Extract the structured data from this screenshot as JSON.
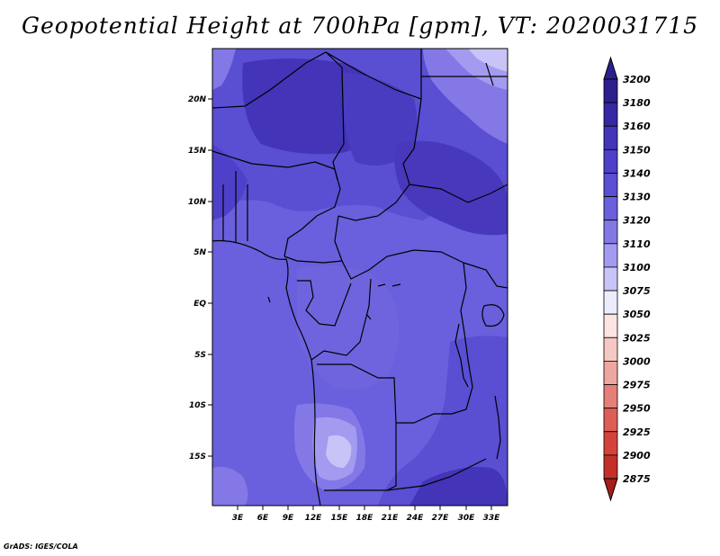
{
  "title": "Geopotential Height at 700hPa [gpm], VT: 2020031715",
  "footer": "GrADS: IGES/COLA",
  "map": {
    "lat_labels": [
      "20N",
      "15N",
      "10N",
      "5N",
      "EQ",
      "5S",
      "10S",
      "15S"
    ],
    "lon_labels": [
      "3E",
      "6E",
      "9E",
      "12E",
      "15E",
      "18E",
      "21E",
      "24E",
      "27E",
      "30E",
      "33E"
    ]
  },
  "colorbar": {
    "levels": [
      {
        "label": "3200",
        "color": "#2e1f8e"
      },
      {
        "label": "3180",
        "color": "#3627a4"
      },
      {
        "label": "3160",
        "color": "#4334b8"
      },
      {
        "label": "3150",
        "color": "#4e40c8"
      },
      {
        "label": "3140",
        "color": "#5a4ed2"
      },
      {
        "label": "3130",
        "color": "#6a5fdc"
      },
      {
        "label": "3120",
        "color": "#8378e6"
      },
      {
        "label": "3110",
        "color": "#a39bf0"
      },
      {
        "label": "3100",
        "color": "#c8c4f8"
      },
      {
        "label": "3075",
        "color": "#ececfc"
      },
      {
        "label": "3050",
        "color": "#fbe4e2"
      },
      {
        "label": "3025",
        "color": "#f6c8c4"
      },
      {
        "label": "3000",
        "color": "#eea6a0"
      },
      {
        "label": "2975",
        "color": "#e48078"
      },
      {
        "label": "2950",
        "color": "#dc5e56"
      },
      {
        "label": "2925",
        "color": "#d4433b"
      },
      {
        "label": "2900",
        "color": "#c23028"
      },
      {
        "label": "2875",
        "color": "#a41e1a"
      }
    ]
  }
}
